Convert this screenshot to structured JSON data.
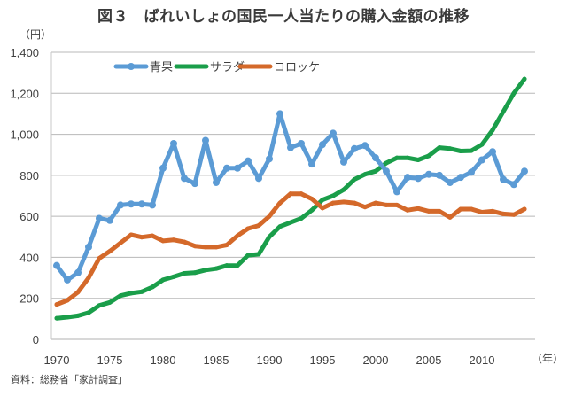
{
  "title": "図３　ばれいしょの国民一人当たりの購入金額の推移",
  "source": "資料：総務省「家計調査」",
  "chart_data": {
    "type": "line",
    "title": "図３　ばれいしょの国民一人当たりの購入金額の推移",
    "ylabel": "（円）",
    "xlabel": "（年）",
    "ylim": [
      0,
      1400
    ],
    "yticks": [
      0,
      200,
      400,
      600,
      800,
      1000,
      1200,
      1400
    ],
    "ytick_labels": [
      "0",
      "200",
      "400",
      "600",
      "800",
      "1,000",
      "1,200",
      "1,400"
    ],
    "xlim": [
      1970,
      2015
    ],
    "xticks": [
      1970,
      1975,
      1980,
      1985,
      1990,
      1995,
      2000,
      2005,
      2010
    ],
    "xtick_labels": [
      "1970",
      "1975",
      "1980",
      "1985",
      "1990",
      "1995",
      "2000",
      "2005",
      "2010"
    ],
    "grid": true,
    "legend_position": "top-left",
    "x": [
      1970,
      1971,
      1972,
      1973,
      1974,
      1975,
      1976,
      1977,
      1978,
      1979,
      1980,
      1981,
      1982,
      1983,
      1984,
      1985,
      1986,
      1987,
      1988,
      1989,
      1990,
      1991,
      1992,
      1993,
      1994,
      1995,
      1996,
      1997,
      1998,
      1999,
      2000,
      2001,
      2002,
      2003,
      2004,
      2005,
      2006,
      2007,
      2008,
      2009,
      2010,
      2011,
      2012,
      2013,
      2014
    ],
    "series": [
      {
        "name": "青果",
        "color": "#5b9bd5",
        "markers": true,
        "values": [
          360,
          290,
          325,
          450,
          590,
          580,
          655,
          660,
          660,
          655,
          835,
          955,
          785,
          760,
          970,
          765,
          835,
          835,
          870,
          785,
          880,
          1100,
          935,
          955,
          855,
          950,
          1005,
          865,
          930,
          945,
          885,
          820,
          720,
          790,
          785,
          805,
          800,
          765,
          790,
          815,
          875,
          915,
          780,
          755,
          820
        ]
      },
      {
        "name": "サラダ",
        "color": "#1a9e4a",
        "markers": false,
        "values": [
          103,
          108,
          115,
          130,
          165,
          180,
          213,
          225,
          232,
          255,
          290,
          305,
          322,
          325,
          338,
          345,
          360,
          360,
          410,
          415,
          500,
          550,
          570,
          590,
          630,
          680,
          700,
          730,
          780,
          805,
          820,
          860,
          885,
          885,
          875,
          895,
          935,
          930,
          918,
          920,
          950,
          1020,
          1110,
          1200,
          1270
        ]
      },
      {
        "name": "コロッケ",
        "color": "#d4692a",
        "markers": false,
        "values": [
          170,
          190,
          230,
          300,
          395,
          430,
          470,
          510,
          498,
          505,
          480,
          485,
          475,
          455,
          450,
          450,
          460,
          505,
          540,
          555,
          600,
          665,
          710,
          710,
          685,
          640,
          665,
          670,
          665,
          645,
          665,
          655,
          655,
          630,
          638,
          625,
          625,
          595,
          635,
          635,
          620,
          625,
          612,
          608,
          635
        ]
      }
    ]
  }
}
